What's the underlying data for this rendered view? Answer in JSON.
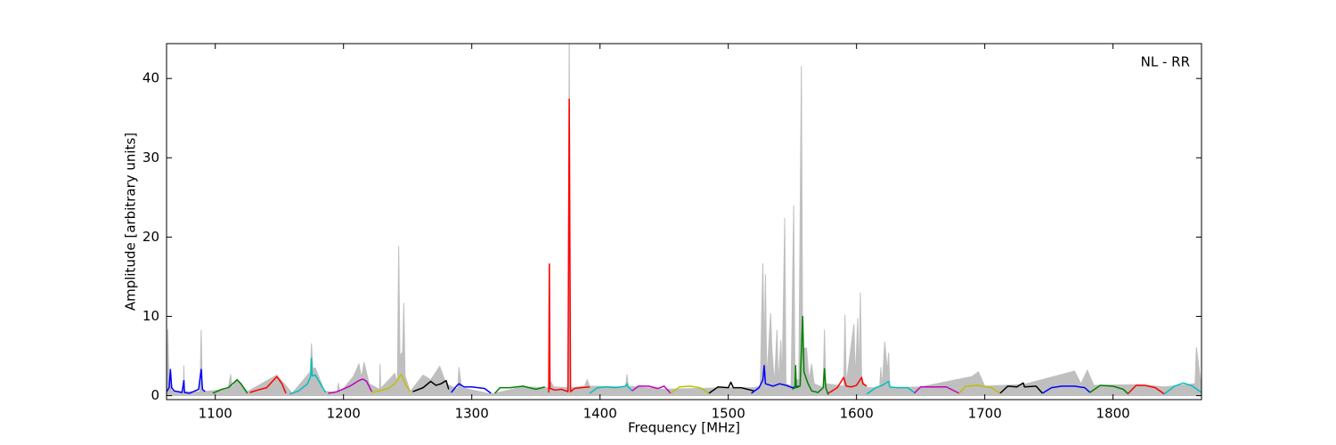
{
  "chart_data": {
    "type": "line",
    "x_label": "Frequency [MHz]",
    "y_label": "Amplitude [arbitrary units]",
    "annotation": "NL - RR",
    "xlim": [
      1062,
      1869
    ],
    "ylim": [
      -0.5,
      44.4
    ],
    "xticks": [
      1100,
      1200,
      1300,
      1400,
      1500,
      1600,
      1700,
      1800
    ],
    "yticks": [
      0,
      10,
      20,
      30,
      40
    ],
    "series": [
      {
        "color": "#bfbfbf",
        "fill": true,
        "x": [
          1062,
          1063,
          1064,
          1065,
          1066,
          1075,
          1075.5,
          1076,
          1088,
          1089,
          1090,
          1110,
          1112,
          1113,
          1117,
          1125,
          1148,
          1160,
          1174,
          1175,
          1176,
          1178,
          1185,
          1195,
          1196,
          1197,
          1208,
          1212,
          1214,
          1216,
          1220,
          1228,
          1228.5,
          1229,
          1240,
          1242,
          1243,
          1244,
          1246,
          1247,
          1248,
          1252,
          1262,
          1268,
          1275,
          1280,
          1289,
          1290,
          1292,
          1315,
          1340,
          1360,
          1361,
          1364,
          1375,
          1376,
          1377,
          1388,
          1390,
          1392,
          1420,
          1421,
          1422,
          1450,
          1500,
          1520,
          1525,
          1526,
          1527,
          1528,
          1529,
          1530,
          1533,
          1534,
          1536,
          1538,
          1539,
          1541,
          1542,
          1544,
          1545,
          1549,
          1551,
          1552,
          1555,
          1557,
          1558,
          1561,
          1563,
          1565,
          1567,
          1574,
          1575,
          1576,
          1590,
          1591,
          1592,
          1598,
          1599,
          1601,
          1602,
          1603,
          1604,
          1608,
          1618,
          1619,
          1620,
          1622,
          1624,
          1625,
          1626,
          1650,
          1690,
          1695,
          1700,
          1730,
          1770,
          1775,
          1780,
          1785,
          1820,
          1840,
          1864,
          1865,
          1867,
          1869
        ],
        "values": [
          0.5,
          8.4,
          0.8,
          3.3,
          0.6,
          0.5,
          3.8,
          0.5,
          0.5,
          8.3,
          0.5,
          0.8,
          2.7,
          1,
          2.1,
          0.5,
          2.6,
          0.3,
          3,
          6.6,
          3.4,
          3.5,
          0.6,
          0.3,
          1.6,
          0.3,
          2.5,
          4.0,
          2.3,
          4.2,
          1.5,
          0.8,
          4.0,
          0.9,
          2.8,
          1.5,
          18.9,
          5,
          5.5,
          11.7,
          2.5,
          0.5,
          2.6,
          2.0,
          3.7,
          1.5,
          0.8,
          3.6,
          1.0,
          0.2,
          1.1,
          1.0,
          1.9,
          1.1,
          1.0,
          46,
          1.0,
          1.2,
          2.0,
          1.2,
          1.1,
          2.7,
          1.2,
          0.8,
          1.0,
          1.0,
          1.2,
          10,
          16.7,
          5,
          15.3,
          2,
          10.4,
          5.9,
          1.5,
          8.3,
          1.5,
          7,
          1.5,
          22.4,
          1.5,
          1.2,
          24,
          2,
          2,
          41.6,
          6,
          6,
          2,
          4,
          1.5,
          1,
          8.3,
          1.5,
          1.2,
          10.2,
          1.5,
          9.0,
          2,
          9.8,
          2,
          13,
          2,
          1,
          1,
          3.6,
          1,
          6.8,
          3,
          5.4,
          1,
          1.1,
          2.4,
          3.0,
          1.2,
          1.4,
          3.1,
          1.5,
          3.2,
          1.3,
          1.4,
          1.1,
          1.5,
          6.1,
          3.5,
          1.0
        ]
      },
      {
        "color": "#0000ff",
        "x": [
          1062,
          1064,
          1065,
          1066,
          1068,
          1074,
          1075.5,
          1076,
          1080,
          1087,
          1089,
          1090,
          1092
        ],
        "values": [
          0.5,
          1.0,
          3.3,
          1.0,
          0.6,
          0.4,
          1.9,
          0.4,
          0.3,
          0.8,
          3.3,
          0.8,
          0.5
        ]
      },
      {
        "color": "#008000",
        "x": [
          1098,
          1105,
          1110,
          1117,
          1120,
          1125
        ],
        "values": [
          0.3,
          0.8,
          1.0,
          2.0,
          1.5,
          0.3
        ]
      },
      {
        "color": "#ff0000",
        "x": [
          1127,
          1133,
          1140,
          1148,
          1152,
          1155
        ],
        "values": [
          0.4,
          0.7,
          1.0,
          2.4,
          1.5,
          0.3
        ]
      },
      {
        "color": "#00bfbf",
        "x": [
          1158,
          1165,
          1172,
          1174.5,
          1175,
          1175.5,
          1178,
          1182,
          1186
        ],
        "values": [
          0.2,
          0.6,
          1.5,
          2.5,
          4.7,
          2.5,
          2.6,
          1.5,
          0.4
        ]
      },
      {
        "color": "#bf00bf",
        "x": [
          1188,
          1195,
          1205,
          1212,
          1215,
          1218,
          1222
        ],
        "values": [
          0.3,
          0.5,
          1.2,
          1.9,
          2.1,
          1.8,
          0.5
        ]
      },
      {
        "color": "#bfbf00",
        "x": [
          1222,
          1228,
          1235,
          1240,
          1245,
          1248,
          1252
        ],
        "values": [
          0.4,
          0.6,
          0.9,
          1.5,
          2.7,
          1.5,
          0.5
        ]
      },
      {
        "color": "#000000",
        "x": [
          1254,
          1262,
          1268,
          1272,
          1276,
          1280,
          1282
        ],
        "values": [
          0.5,
          1.0,
          1.8,
          1.3,
          1.5,
          1.9,
          0.8
        ]
      },
      {
        "color": "#0000ff",
        "x": [
          1284,
          1288,
          1290,
          1294,
          1300,
          1310,
          1315
        ],
        "values": [
          0.4,
          1.2,
          1.5,
          1.1,
          1.1,
          0.9,
          0.3
        ]
      },
      {
        "color": "#008000",
        "x": [
          1318,
          1322,
          1330,
          1340,
          1350,
          1357
        ],
        "values": [
          0.3,
          1.0,
          1.0,
          1.2,
          0.8,
          1.1
        ]
      },
      {
        "color": "#ff0000",
        "x": [
          1360,
          1360.5,
          1361,
          1365,
          1370,
          1375,
          1376,
          1377,
          1380,
          1385,
          1392
        ],
        "values": [
          0.4,
          16.6,
          0.9,
          0.7,
          0.8,
          0.5,
          37.4,
          0.5,
          0.9,
          1.0,
          1.1
        ]
      },
      {
        "color": "#00bfbf",
        "x": [
          1392,
          1398,
          1405,
          1412,
          1420,
          1421,
          1422,
          1425
        ],
        "values": [
          0.3,
          1.0,
          1.1,
          1.0,
          1.2,
          1.5,
          1.1,
          0.6
        ]
      },
      {
        "color": "#bf00bf",
        "x": [
          1425,
          1430,
          1438,
          1445,
          1450,
          1455
        ],
        "values": [
          0.6,
          1.2,
          1.2,
          0.9,
          1.2,
          0.3
        ]
      },
      {
        "color": "#bfbf00",
        "x": [
          1455,
          1462,
          1470,
          1478,
          1485
        ],
        "values": [
          0.3,
          1.1,
          1.2,
          1.0,
          0.3
        ]
      },
      {
        "color": "#000000",
        "x": [
          1485,
          1492,
          1500,
          1502,
          1504,
          1510,
          1520
        ],
        "values": [
          0.3,
          1.1,
          1.0,
          1.7,
          1.0,
          1.0,
          0.6
        ]
      },
      {
        "color": "#0000ff",
        "x": [
          1518,
          1524,
          1527,
          1528,
          1529,
          1535,
          1540,
          1545,
          1550,
          1555
        ],
        "values": [
          0.3,
          1.0,
          2.0,
          3.8,
          1.5,
          1.2,
          1.5,
          1.3,
          1.0,
          1.2
        ]
      },
      {
        "color": "#008000",
        "x": [
          1550,
          1552,
          1552.5,
          1553,
          1556,
          1558,
          1559,
          1562,
          1565,
          1570,
          1574,
          1575,
          1576,
          1578
        ],
        "values": [
          0.8,
          1.0,
          3.8,
          1.0,
          1.2,
          10.0,
          3.0,
          1.6,
          0.6,
          0.4,
          1.0,
          3.4,
          1.0,
          0.1
        ]
      },
      {
        "color": "#ff0000",
        "x": [
          1578,
          1585,
          1590,
          1592,
          1596,
          1600,
          1604,
          1605,
          1608
        ],
        "values": [
          0.3,
          1.0,
          2.3,
          1.2,
          1.1,
          1.3,
          2.3,
          1.5,
          1.2
        ]
      },
      {
        "color": "#00bfbf",
        "x": [
          1608,
          1615,
          1620,
          1625,
          1626,
          1632,
          1640,
          1645
        ],
        "values": [
          0.2,
          1.0,
          1.3,
          1.8,
          1.1,
          1.0,
          1.0,
          0.4
        ]
      },
      {
        "color": "#bf00bf",
        "x": [
          1645,
          1650,
          1660,
          1670,
          1680
        ],
        "values": [
          0.3,
          1.1,
          1.1,
          1.1,
          0.3
        ]
      },
      {
        "color": "#bfbf00",
        "x": [
          1680,
          1685,
          1695,
          1705,
          1712
        ],
        "values": [
          0.3,
          1.2,
          1.3,
          1.0,
          0.3
        ]
      },
      {
        "color": "#000000",
        "x": [
          1712,
          1718,
          1725,
          1730,
          1731,
          1740,
          1745
        ],
        "values": [
          0.3,
          1.2,
          1.1,
          1.6,
          1.1,
          1.2,
          0.3
        ]
      },
      {
        "color": "#0000ff",
        "x": [
          1745,
          1752,
          1760,
          1770,
          1778,
          1782
        ],
        "values": [
          0.3,
          1.0,
          1.2,
          1.2,
          1.0,
          0.4
        ]
      },
      {
        "color": "#008000",
        "x": [
          1782,
          1790,
          1800,
          1808,
          1812
        ],
        "values": [
          0.4,
          1.3,
          1.2,
          0.8,
          0.2
        ]
      },
      {
        "color": "#ff0000",
        "x": [
          1812,
          1818,
          1825,
          1833,
          1840
        ],
        "values": [
          0.3,
          1.3,
          1.3,
          1.0,
          0.2
        ]
      },
      {
        "color": "#00bfbf",
        "x": [
          1840,
          1848,
          1855,
          1862,
          1869
        ],
        "values": [
          0.2,
          1.2,
          1.6,
          1.2,
          0.4
        ]
      }
    ]
  }
}
